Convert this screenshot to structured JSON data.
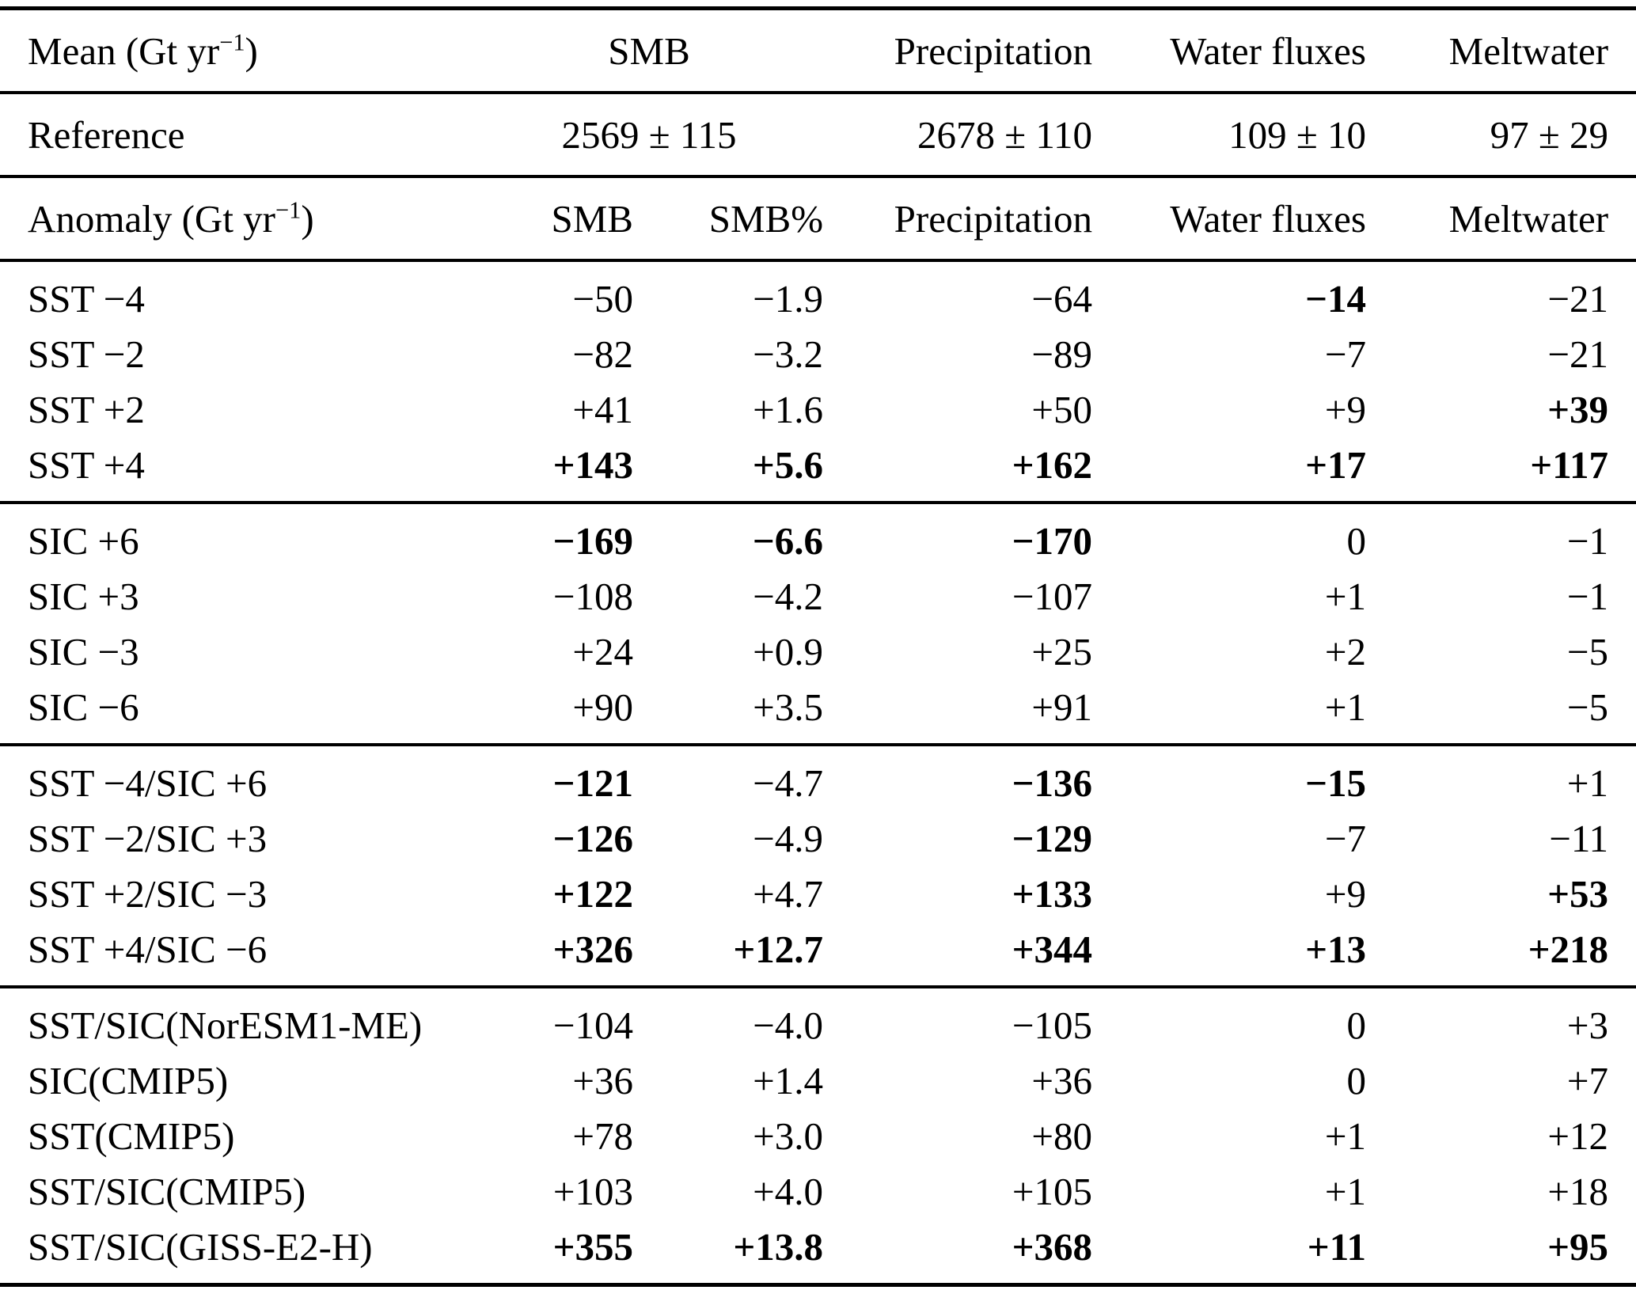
{
  "table": {
    "mean_header": {
      "label_prefix": "Mean (Gt yr",
      "label_sup": "−1",
      "label_suffix": ")",
      "smb": "SMB",
      "precipitation": "Precipitation",
      "water_fluxes": "Water fluxes",
      "meltwater": "Meltwater"
    },
    "reference_row": {
      "label": "Reference",
      "smb": "2569 ± 115",
      "precipitation": "2678 ± 110",
      "water_fluxes": "109 ± 10",
      "meltwater": "97 ± 29"
    },
    "anomaly_header": {
      "label_prefix": "Anomaly (Gt yr",
      "label_sup": "−1",
      "label_suffix": ")",
      "smb": "SMB",
      "smb_pct": "SMB%",
      "precipitation": "Precipitation",
      "water_fluxes": "Water fluxes",
      "meltwater": "Meltwater"
    },
    "sections": [
      {
        "name": "sst-experiments",
        "rows": [
          {
            "label": "SST −4",
            "values": [
              "−50",
              "−1.9",
              "−64",
              "−14",
              "−21"
            ],
            "bold": [
              false,
              false,
              false,
              true,
              false
            ]
          },
          {
            "label": "SST −2",
            "values": [
              "−82",
              "−3.2",
              "−89",
              "−7",
              "−21"
            ],
            "bold": [
              false,
              false,
              false,
              false,
              false
            ]
          },
          {
            "label": "SST +2",
            "values": [
              "+41",
              "+1.6",
              "+50",
              "+9",
              "+39"
            ],
            "bold": [
              false,
              false,
              false,
              false,
              true
            ]
          },
          {
            "label": "SST +4",
            "values": [
              "+143",
              "+5.6",
              "+162",
              "+17",
              "+117"
            ],
            "bold": [
              true,
              true,
              true,
              true,
              true
            ]
          }
        ]
      },
      {
        "name": "sic-experiments",
        "rows": [
          {
            "label": "SIC +6",
            "values": [
              "−169",
              "−6.6",
              "−170",
              "0",
              "−1"
            ],
            "bold": [
              true,
              true,
              true,
              false,
              false
            ]
          },
          {
            "label": "SIC +3",
            "values": [
              "−108",
              "−4.2",
              "−107",
              "+1",
              "−1"
            ],
            "bold": [
              false,
              false,
              false,
              false,
              false
            ]
          },
          {
            "label": "SIC −3",
            "values": [
              "+24",
              "+0.9",
              "+25",
              "+2",
              "−5"
            ],
            "bold": [
              false,
              false,
              false,
              false,
              false
            ]
          },
          {
            "label": "SIC −6",
            "values": [
              "+90",
              "+3.5",
              "+91",
              "+1",
              "−5"
            ],
            "bold": [
              false,
              false,
              false,
              false,
              false
            ]
          }
        ]
      },
      {
        "name": "sst-sic-combined-experiments",
        "rows": [
          {
            "label": "SST −4/SIC +6",
            "values": [
              "−121",
              "−4.7",
              "−136",
              "−15",
              "+1"
            ],
            "bold": [
              true,
              false,
              true,
              true,
              false
            ]
          },
          {
            "label": "SST −2/SIC +3",
            "values": [
              "−126",
              "−4.9",
              "−129",
              "−7",
              "−11"
            ],
            "bold": [
              true,
              false,
              true,
              false,
              false
            ]
          },
          {
            "label": "SST +2/SIC −3",
            "values": [
              "+122",
              "+4.7",
              "+133",
              "+9",
              "+53"
            ],
            "bold": [
              true,
              false,
              true,
              false,
              true
            ]
          },
          {
            "label": "SST +4/SIC −6",
            "values": [
              "+326",
              "+12.7",
              "+344",
              "+13",
              "+218"
            ],
            "bold": [
              true,
              true,
              true,
              true,
              true
            ]
          }
        ]
      },
      {
        "name": "model-experiments",
        "rows": [
          {
            "label": "SST/SIC(NorESM1-ME)",
            "values": [
              "−104",
              "−4.0",
              "−105",
              "0",
              "+3"
            ],
            "bold": [
              false,
              false,
              false,
              false,
              false
            ]
          },
          {
            "label": "SIC(CMIP5)",
            "values": [
              "+36",
              "+1.4",
              "+36",
              "0",
              "+7"
            ],
            "bold": [
              false,
              false,
              false,
              false,
              false
            ]
          },
          {
            "label": "SST(CMIP5)",
            "values": [
              "+78",
              "+3.0",
              "+80",
              "+1",
              "+12"
            ],
            "bold": [
              false,
              false,
              false,
              false,
              false
            ]
          },
          {
            "label": "SST/SIC(CMIP5)",
            "values": [
              "+103",
              "+4.0",
              "+105",
              "+1",
              "+18"
            ],
            "bold": [
              false,
              false,
              false,
              false,
              false
            ]
          },
          {
            "label": "SST/SIC(GISS-E2-H)",
            "values": [
              "+355",
              "+13.8",
              "+368",
              "+11",
              "+95"
            ],
            "bold": [
              true,
              true,
              true,
              true,
              true
            ]
          }
        ]
      }
    ]
  }
}
